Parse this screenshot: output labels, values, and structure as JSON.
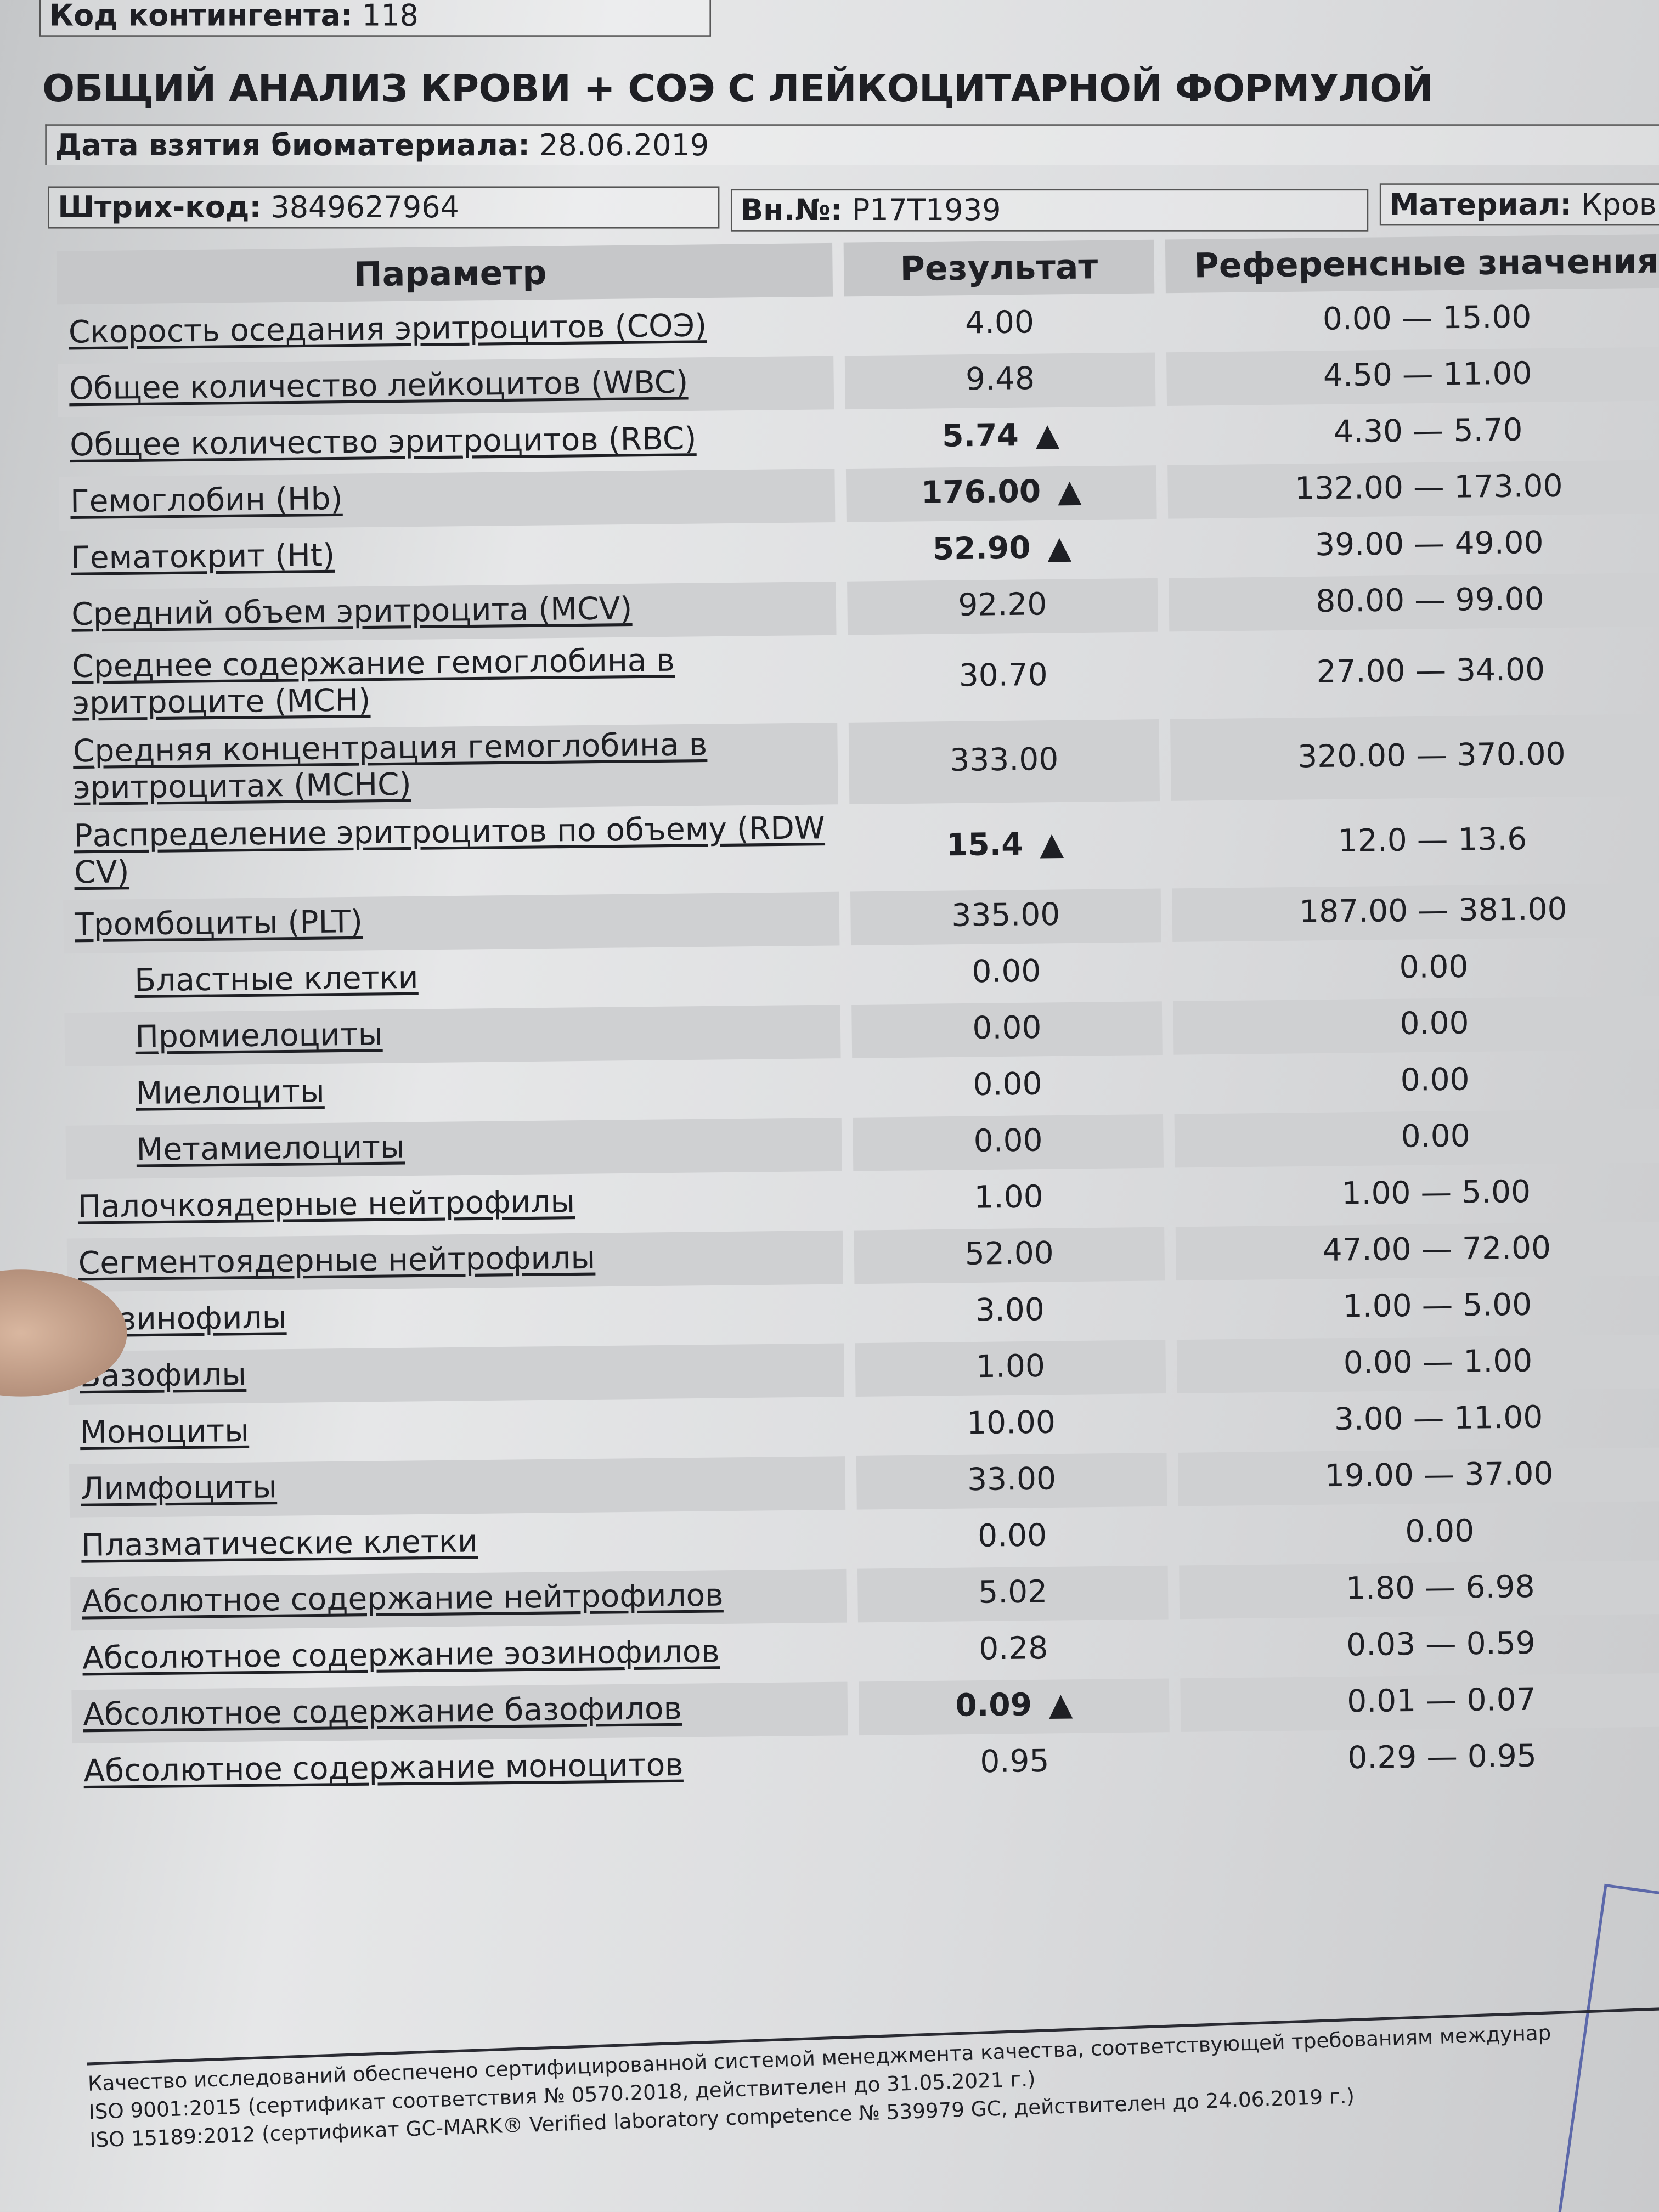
{
  "header": {
    "contingent_label": "Код контингента:",
    "contingent_value": "118",
    "title": "ОБЩИЙ АНАЛИЗ КРОВИ + СОЭ С ЛЕЙКОЦИТАРНОЙ ФОРМУЛОЙ",
    "date_label": "Дата взятия биоматериала:",
    "date_value": "28.06.2019",
    "barcode_label": "Штрих-код:",
    "barcode_value": "3849627964",
    "internal_label": "Вн.№:",
    "internal_value": "P17T1939",
    "material_label": "Материал:",
    "material_value": "Кровь"
  },
  "table": {
    "columns": [
      "Параметр",
      "Результат",
      "Референсные значения"
    ],
    "high_flag_icon": "triangle-up",
    "rows": [
      {
        "param": "Скорость оседания эритроцитов (СОЭ)",
        "result": "4.00",
        "ref": "0.00 — 15.00",
        "high": false
      },
      {
        "param": "Общее количество лейкоцитов (WBC)",
        "result": "9.48",
        "ref": "4.50 — 11.00",
        "high": false
      },
      {
        "param": "Общее количество эритроцитов (RBC)",
        "result": "5.74",
        "ref": "4.30 — 5.70",
        "high": true
      },
      {
        "param": "Гемоглобин (Hb)",
        "result": "176.00",
        "ref": "132.00 — 173.00",
        "high": true
      },
      {
        "param": "Гематокрит (Ht)",
        "result": "52.90",
        "ref": "39.00 — 49.00",
        "high": true
      },
      {
        "param": "Средний объем эритроцита (MCV)",
        "result": "92.20",
        "ref": "80.00 — 99.00",
        "high": false
      },
      {
        "param": "Среднее содержание гемоглобина в эритроците (MCH)",
        "result": "30.70",
        "ref": "27.00 — 34.00",
        "high": false
      },
      {
        "param": "Средняя концентрация гемоглобина в эритроцитах (MCHC)",
        "result": "333.00",
        "ref": "320.00 — 370.00",
        "high": false
      },
      {
        "param": "Распределение эритроцитов по объему (RDW CV)",
        "result": "15.4",
        "ref": "12.0 — 13.6",
        "high": true
      },
      {
        "param": "Тромбоциты (PLT)",
        "result": "335.00",
        "ref": "187.00 — 381.00",
        "high": false
      },
      {
        "param": "Бластные клетки",
        "result": "0.00",
        "ref": "0.00",
        "high": false
      },
      {
        "param": "Промиелоциты",
        "result": "0.00",
        "ref": "0.00",
        "high": false
      },
      {
        "param": "Миелоциты",
        "result": "0.00",
        "ref": "0.00",
        "high": false
      },
      {
        "param": "Метамиелоциты",
        "result": "0.00",
        "ref": "0.00",
        "high": false
      },
      {
        "param": "Палочкоядерные нейтрофилы",
        "result": "1.00",
        "ref": "1.00 — 5.00",
        "high": false
      },
      {
        "param": "Сегментоядерные нейтрофилы",
        "result": "52.00",
        "ref": "47.00 — 72.00",
        "high": false
      },
      {
        "param": "Эозинофилы",
        "result": "3.00",
        "ref": "1.00 — 5.00",
        "high": false
      },
      {
        "param": "Базофилы",
        "result": "1.00",
        "ref": "0.00 — 1.00",
        "high": false
      },
      {
        "param": "Моноциты",
        "result": "10.00",
        "ref": "3.00 — 11.00",
        "high": false
      },
      {
        "param": "Лимфоциты",
        "result": "33.00",
        "ref": "19.00 — 37.00",
        "high": false
      },
      {
        "param": "Плазматические клетки",
        "result": "0.00",
        "ref": "0.00",
        "high": false
      },
      {
        "param": "Абсолютное содержание нейтрофилов",
        "result": "5.02",
        "ref": "1.80 — 6.98",
        "high": false
      },
      {
        "param": "Абсолютное содержание эозинофилов",
        "result": "0.28",
        "ref": "0.03 — 0.59",
        "high": false
      },
      {
        "param": "Абсолютное содержание базофилов",
        "result": "0.09",
        "ref": "0.01 — 0.07",
        "high": true
      },
      {
        "param": "Абсолютное содержание моноцитов",
        "result": "0.95",
        "ref": "0.29 — 0.95",
        "high": false
      }
    ]
  },
  "footer": {
    "line1": "Качество исследований обеспечено сертифицированной системой менеджмента качества, соответствующей требованиям междунар",
    "line2": "ISO 9001:2015 (сертификат соответствия № 0570.2018, действителен до 31.05.2021 г.)",
    "line3": "ISO 15189:2012 (сертификат GC-MARK® Verified laboratory competence № 539979 GC, действителен до 24.06.2019 г.)"
  }
}
